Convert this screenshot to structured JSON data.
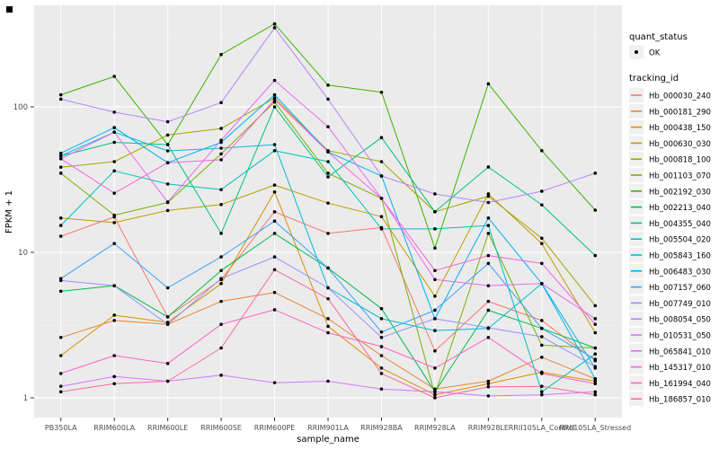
{
  "figure": {
    "xlabel": "sample_name",
    "ylabel": "FPKM + 1",
    "legend": {
      "quant_status_title": "quant_status",
      "quant_status_value": "OK",
      "tracking_id_title": "tracking_id"
    }
  },
  "style": {
    "panel_bg": "#EBEBEB",
    "grid_major": "#FFFFFF",
    "grid_minor": "#F5F5F5",
    "tick_label_color": "#4D4D4D",
    "axis_title_color": "#000000",
    "legend_key_bg": "#F0F0F0",
    "marker_color": "#000000"
  },
  "chart_data": {
    "type": "line",
    "title": "",
    "xlabel": "sample_name",
    "ylabel": "FPKM + 1",
    "y_scale": "log10",
    "y_ticks": [
      1,
      10,
      100
    ],
    "ylim": [
      1,
      400
    ],
    "grid": true,
    "legend_position": "right",
    "marker": "black-point",
    "categories": [
      "PB350LA",
      "RRIM600LA",
      "RRIM600LE",
      "RRIM600SE",
      "RRIM600PE",
      "RRIM901LA",
      "RRIM928BA",
      "RRIM928LA",
      "RRIM928LE",
      "RRII105LA_Control",
      "RRII105LA_Stressed"
    ],
    "series": [
      {
        "name": "Hb_000030_240",
        "color": "#F8766D",
        "values": [
          12.9,
          17.5,
          3.6,
          6.5,
          19,
          13.5,
          14.8,
          2.1,
          4.6,
          3.4,
          1.8
        ]
      },
      {
        "name": "Hb_000181_290",
        "color": "#EA8331",
        "values": [
          2.6,
          3.4,
          3.2,
          4.6,
          5.3,
          3.5,
          1.95,
          1.15,
          1.3,
          1.9,
          1.35
        ]
      },
      {
        "name": "Hb_000438_150",
        "color": "#D89000",
        "values": [
          1.95,
          3.7,
          3.3,
          6.1,
          26,
          3.1,
          1.6,
          1.05,
          1.25,
          1.5,
          1.3
        ]
      },
      {
        "name": "Hb_000630_030",
        "color": "#C09B00",
        "values": [
          17.2,
          16,
          19.4,
          21.3,
          29,
          21.8,
          17.6,
          5.0,
          25.2,
          11.5,
          2.8
        ]
      },
      {
        "name": "Hb_000818_100",
        "color": "#A3A500",
        "values": [
          38.5,
          42,
          64,
          71,
          115,
          50,
          42,
          19,
          24.3,
          12.5,
          4.3
        ]
      },
      {
        "name": "Hb_001103_070",
        "color": "#7CAE00",
        "values": [
          35,
          18,
          22,
          47.5,
          108,
          35,
          23.5,
          1.05,
          13.5,
          2.3,
          2.2
        ]
      },
      {
        "name": "Hb_002192_030",
        "color": "#39B600",
        "values": [
          121,
          162,
          55,
          229,
          372,
          141,
          126,
          10.7,
          144,
          50,
          19.5
        ]
      },
      {
        "name": "Hb_002213_040",
        "color": "#00BB4E",
        "values": [
          5.4,
          5.9,
          3.6,
          7.5,
          13.5,
          7.8,
          4.1,
          1.1,
          4.0,
          3.0,
          2.2
        ]
      },
      {
        "name": "Hb_004355_040",
        "color": "#00C087",
        "values": [
          46,
          57,
          55,
          13.5,
          100,
          33,
          61.5,
          19,
          38.6,
          21.2,
          9.5
        ]
      },
      {
        "name": "Hb_005504_020",
        "color": "#00C0B8",
        "values": [
          15.3,
          36.3,
          29.5,
          27,
          50,
          42,
          14.5,
          14.5,
          15.3,
          1.1,
          2.0
        ]
      },
      {
        "name": "Hb_005843_160",
        "color": "#00BCD8",
        "values": [
          46,
          67,
          49.8,
          52,
          55,
          5.7,
          3.5,
          2.9,
          3.0,
          6.1,
          1.6
        ]
      },
      {
        "name": "Hb_006483_030",
        "color": "#00B0F6",
        "values": [
          48,
          72,
          41.3,
          57,
          121,
          49,
          33.5,
          3.5,
          17.2,
          6.1,
          1.35
        ]
      },
      {
        "name": "Hb_007157_060",
        "color": "#35A2FF",
        "values": [
          6.6,
          11.5,
          5.7,
          9.3,
          16.4,
          7.8,
          2.83,
          4.0,
          8.4,
          3.0,
          1.84
        ]
      },
      {
        "name": "Hb_007749_010",
        "color": "#9590FF",
        "values": [
          6.4,
          5.9,
          3.2,
          6.6,
          9.3,
          5.7,
          2.6,
          3.5,
          3.03,
          2.63,
          1.64
        ]
      },
      {
        "name": "Hb_008054_050",
        "color": "#B983FF",
        "values": [
          113,
          92,
          79,
          107,
          350,
          113,
          33.5,
          25.2,
          22,
          26.3,
          35
        ]
      },
      {
        "name": "Hb_010531_050",
        "color": "#D575FE",
        "values": [
          1.2,
          1.4,
          1.3,
          1.43,
          1.27,
          1.3,
          1.15,
          1.1,
          1.03,
          1.05,
          1.1
        ]
      },
      {
        "name": "Hb_065841_010",
        "color": "#E76BF3",
        "values": [
          44,
          67,
          22.2,
          59,
          152,
          73,
          23.5,
          6.5,
          5.9,
          6.1,
          3.5
        ]
      },
      {
        "name": "Hb_145317_010",
        "color": "#F763E0",
        "values": [
          44,
          25.5,
          41.3,
          43.3,
          112,
          49,
          23.5,
          7.5,
          9.5,
          8.4,
          3.2
        ]
      },
      {
        "name": "Hb_161994_040",
        "color": "#FF61C7",
        "values": [
          1.47,
          1.95,
          1.72,
          3.2,
          4.03,
          2.8,
          2.25,
          1.6,
          2.6,
          1.47,
          1.25
        ]
      },
      {
        "name": "Hb_186857_010",
        "color": "#FF689E",
        "values": [
          1.1,
          1.25,
          1.3,
          2.2,
          7.6,
          4.8,
          1.47,
          1.0,
          1.19,
          1.2,
          1.05
        ]
      }
    ]
  }
}
